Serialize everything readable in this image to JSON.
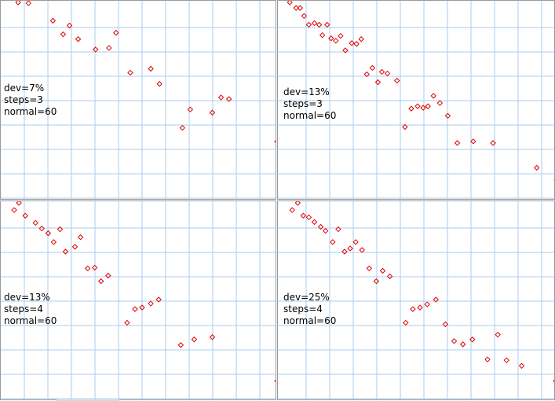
{
  "colors": {
    "grid": "#a9cdf0",
    "border": "#9a9a9a",
    "marker": "#e00000",
    "background": "#ffffff"
  },
  "chart_data": [
    {
      "type": "scatter",
      "labels": [
        "dev=7%",
        "steps=3",
        "normal=60"
      ],
      "grid": true,
      "xlim": [
        0,
        350
      ],
      "ylim": [
        250,
        0
      ],
      "points": [
        [
          22,
          2
        ],
        [
          35,
          3
        ],
        [
          66,
          25
        ],
        [
          79,
          42
        ],
        [
          87,
          31
        ],
        [
          98,
          48
        ],
        [
          120,
          61
        ],
        [
          137,
          59
        ],
        [
          146,
          40
        ],
        [
          164,
          90
        ],
        [
          190,
          85
        ],
        [
          201,
          104
        ],
        [
          230,
          159
        ],
        [
          240,
          136
        ],
        [
          268,
          140
        ],
        [
          279,
          121
        ],
        [
          289,
          123
        ],
        [
          350,
          176
        ]
      ]
    },
    {
      "type": "scatter",
      "labels": [
        "dev=13%",
        "steps=3",
        "normal=60"
      ],
      "grid": true,
      "xlim": [
        0,
        350
      ],
      "ylim": [
        250,
        0
      ],
      "points": [
        [
          15,
          2
        ],
        [
          23,
          9
        ],
        [
          28,
          9
        ],
        [
          33,
          19
        ],
        [
          39,
          30
        ],
        [
          46,
          28
        ],
        [
          52,
          30
        ],
        [
          56,
          43
        ],
        [
          62,
          30
        ],
        [
          67,
          47
        ],
        [
          73,
          50
        ],
        [
          79,
          44
        ],
        [
          85,
          62
        ],
        [
          93,
          53
        ],
        [
          99,
          54
        ],
        [
          105,
          48
        ],
        [
          112,
          92
        ],
        [
          119,
          84
        ],
        [
          126,
          102
        ],
        [
          131,
          89
        ],
        [
          138,
          91
        ],
        [
          150,
          100
        ],
        [
          160,
          158
        ],
        [
          168,
          135
        ],
        [
          176,
          132
        ],
        [
          183,
          134
        ],
        [
          189,
          132
        ],
        [
          196,
          119
        ],
        [
          204,
          128
        ],
        [
          214,
          144
        ],
        [
          226,
          178
        ],
        [
          246,
          176
        ],
        [
          271,
          178
        ],
        [
          326,
          209
        ],
        [
          351,
          224
        ]
      ]
    },
    {
      "type": "scatter",
      "labels": [
        "dev=13%",
        "steps=4",
        "normal=60"
      ],
      "grid": true,
      "xlim": [
        0,
        350
      ],
      "ylim": [
        250,
        0
      ],
      "points": [
        [
          17,
          11
        ],
        [
          23,
          2
        ],
        [
          31,
          18
        ],
        [
          44,
          27
        ],
        [
          52,
          34
        ],
        [
          60,
          40
        ],
        [
          67,
          51
        ],
        [
          75,
          35
        ],
        [
          82,
          63
        ],
        [
          94,
          57
        ],
        [
          101,
          45
        ],
        [
          110,
          84
        ],
        [
          119,
          83
        ],
        [
          127,
          100
        ],
        [
          136,
          93
        ],
        [
          160,
          152
        ],
        [
          170,
          135
        ],
        [
          179,
          133
        ],
        [
          190,
          128
        ],
        [
          200,
          123
        ],
        [
          228,
          180
        ],
        [
          245,
          173
        ],
        [
          268,
          170
        ],
        [
          350,
          225
        ]
      ]
    },
    {
      "type": "scatter",
      "labels": [
        "dev=25%",
        "steps=4",
        "normal=60"
      ],
      "grid": true,
      "xlim": [
        0,
        350
      ],
      "ylim": [
        250,
        0
      ],
      "points": [
        [
          18,
          11
        ],
        [
          25,
          2
        ],
        [
          32,
          18
        ],
        [
          39,
          20
        ],
        [
          46,
          26
        ],
        [
          54,
          32
        ],
        [
          60,
          37
        ],
        [
          69,
          51
        ],
        [
          76,
          35
        ],
        [
          84,
          63
        ],
        [
          91,
          59
        ],
        [
          98,
          51
        ],
        [
          106,
          61
        ],
        [
          115,
          84
        ],
        [
          124,
          100
        ],
        [
          132,
          87
        ],
        [
          141,
          94
        ],
        [
          161,
          152
        ],
        [
          170,
          135
        ],
        [
          179,
          133
        ],
        [
          188,
          129
        ],
        [
          199,
          123
        ],
        [
          211,
          154
        ],
        [
          222,
          175
        ],
        [
          233,
          179
        ],
        [
          245,
          173
        ],
        [
          264,
          198
        ],
        [
          277,
          167
        ],
        [
          288,
          199
        ],
        [
          307,
          206
        ],
        [
          350,
          225
        ]
      ]
    }
  ]
}
